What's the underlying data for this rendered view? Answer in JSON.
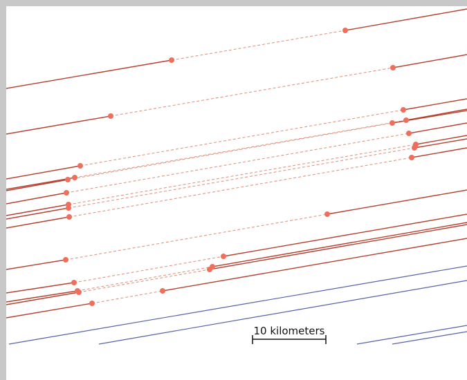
{
  "colors": {
    "frame": "#c8c8c8",
    "background": "#ffffff",
    "solid_line": "#b5402e",
    "dashed_line": "#e0957f",
    "marker": "#ef6f5c",
    "blue_line": "#5560a8",
    "scale_bar": "#111111"
  },
  "scale_bar": {
    "label": "10 kilometers"
  }
}
